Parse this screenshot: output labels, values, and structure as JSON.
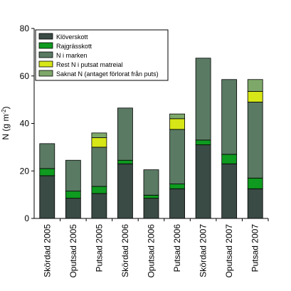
{
  "chart_data": {
    "type": "bar",
    "stacked": true,
    "title": "",
    "xlabel": "",
    "ylabel": "N (g m",
    "ylabel_superscript": "-2",
    "ylabel_suffix": ")",
    "ylim": [
      0,
      80
    ],
    "yticks": [
      0,
      20,
      40,
      60,
      80
    ],
    "grid": false,
    "legend_position": "top-left",
    "categories": [
      "Skördad 2005",
      "Oputsad 2005",
      "Putsad 2005",
      "Skördad 2006",
      "Oputsad 2006",
      "Putsad 2006",
      "Skördad 2007",
      "Oputsad 2007",
      "Putsad 2007"
    ],
    "series": [
      {
        "name": "Klöverskott",
        "color": "#3a4a44",
        "values": [
          18,
          8.5,
          10.5,
          23,
          8.5,
          12.5,
          31,
          23,
          12.5
        ]
      },
      {
        "name": "Rajgrässkott",
        "color": "#0f9a20",
        "values": [
          3,
          3,
          3,
          1.5,
          1.3,
          2,
          2,
          4,
          4.5
        ]
      },
      {
        "name": "N i marken",
        "color": "#5a7a63",
        "values": [
          10.5,
          13,
          16.5,
          22,
          10.7,
          23,
          34.5,
          31.5,
          32
        ]
      },
      {
        "name": "Rest N i putsat matreial",
        "color": "#d6e616",
        "values": [
          0,
          0,
          4,
          0,
          0,
          4.5,
          0,
          0,
          4.5
        ]
      },
      {
        "name": "Saknat N (antaget förlorat från puts)",
        "color": "#7ea86a",
        "values": [
          0,
          0,
          2,
          0,
          0,
          2,
          0,
          0,
          5
        ]
      }
    ]
  }
}
